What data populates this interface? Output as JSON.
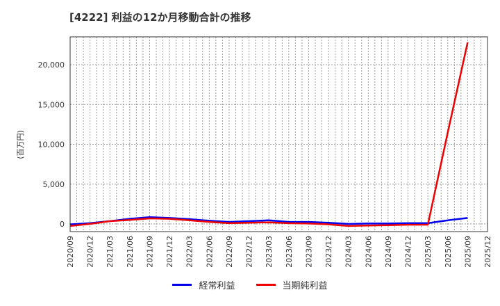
{
  "title": "[4222]  利益の12か月移動合計の推移",
  "colors": {
    "keijo": "#0000ee",
    "junri": "#ee0000",
    "grid": "#999999",
    "axis": "#333333"
  },
  "chart_data": {
    "type": "line",
    "title": "[4222]  利益の12か月移動合計の推移",
    "xlabel": "",
    "ylabel": "(百万円)",
    "ylim": [
      -300,
      23500
    ],
    "yticks": [
      0,
      5000,
      10000,
      15000,
      20000
    ],
    "ytick_labels": [
      "0",
      "5,000",
      "10,000",
      "15,000",
      "20,000"
    ],
    "grid": true,
    "legend_position": "bottom",
    "categories": [
      "2020/09",
      "2020/12",
      "2021/03",
      "2021/06",
      "2021/09",
      "2021/12",
      "2022/03",
      "2022/06",
      "2022/09",
      "2022/12",
      "2023/03",
      "2023/06",
      "2023/09",
      "2023/12",
      "2024/03",
      "2024/06",
      "2024/09",
      "2024/12",
      "2025/03",
      "2025/06",
      "2025/09",
      "2025/12"
    ],
    "series": [
      {
        "name": "経常利益",
        "color": "#0000ee",
        "values": [
          -50,
          100,
          350,
          650,
          850,
          750,
          600,
          400,
          250,
          350,
          450,
          250,
          250,
          150,
          0,
          50,
          50,
          100,
          100,
          450,
          750,
          null
        ]
      },
      {
        "name": "当期純利益",
        "color": "#ee0000",
        "values": [
          -250,
          0,
          350,
          500,
          700,
          650,
          450,
          250,
          100,
          150,
          200,
          100,
          50,
          -50,
          -250,
          -200,
          -150,
          -100,
          -100,
          11500,
          22800,
          null
        ]
      }
    ]
  },
  "legend": [
    {
      "label": "経常利益",
      "color": "#0000ee"
    },
    {
      "label": "当期純利益",
      "color": "#ee0000"
    }
  ]
}
